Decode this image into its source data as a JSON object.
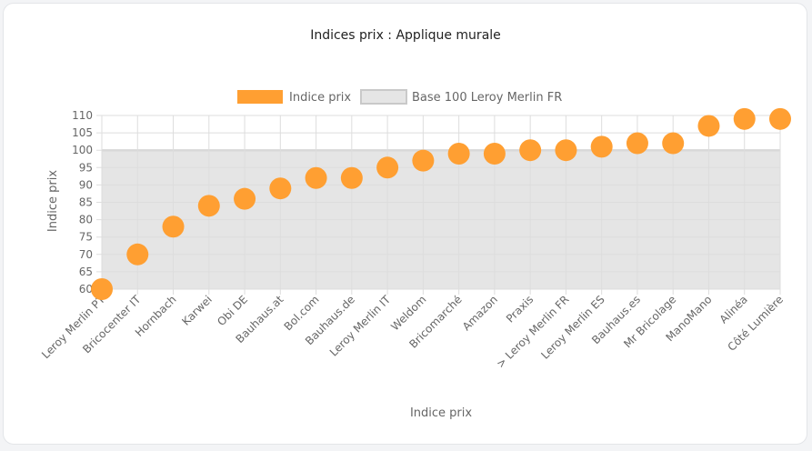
{
  "colors": {
    "point": "#FF9F32",
    "base_fill": "#E5E5E5",
    "base_border": "#C9C9C9",
    "grid": "#DDDDDD",
    "text": "#666666",
    "title": "#222222"
  },
  "chart_data": {
    "type": "scatter",
    "title": "Indices prix : Applique murale",
    "xlabel": "Indice prix",
    "ylabel": "Indice prix",
    "ylim": [
      60,
      110
    ],
    "yticks": [
      60,
      65,
      70,
      75,
      80,
      85,
      90,
      95,
      100,
      105,
      110
    ],
    "grid": true,
    "legend_position": "top",
    "categories": [
      "Leroy Merlin PT",
      "Bricocenter IT",
      "Hornbach",
      "Karwei",
      "Obi DE",
      "Bauhaus.at",
      "Bol.com",
      "Bauhaus.de",
      "Leroy Merlin IT",
      "Weldom",
      "Bricomarché",
      "Amazon",
      "Praxis",
      "> Leroy Merlin FR",
      "Leroy Merlin ES",
      "Bauhaus.es",
      "Mr Bricolage",
      "ManoMano",
      "Alinéa",
      "Côté Lumière"
    ],
    "series": [
      {
        "name": "Indice prix",
        "type": "points",
        "values": [
          60,
          70,
          78,
          84,
          86,
          89,
          92,
          92,
          95,
          97,
          99,
          99,
          100,
          100,
          101,
          102,
          102,
          107,
          109,
          109
        ]
      },
      {
        "name": "Base 100 Leroy Merlin FR",
        "type": "area",
        "value": 100
      }
    ]
  }
}
